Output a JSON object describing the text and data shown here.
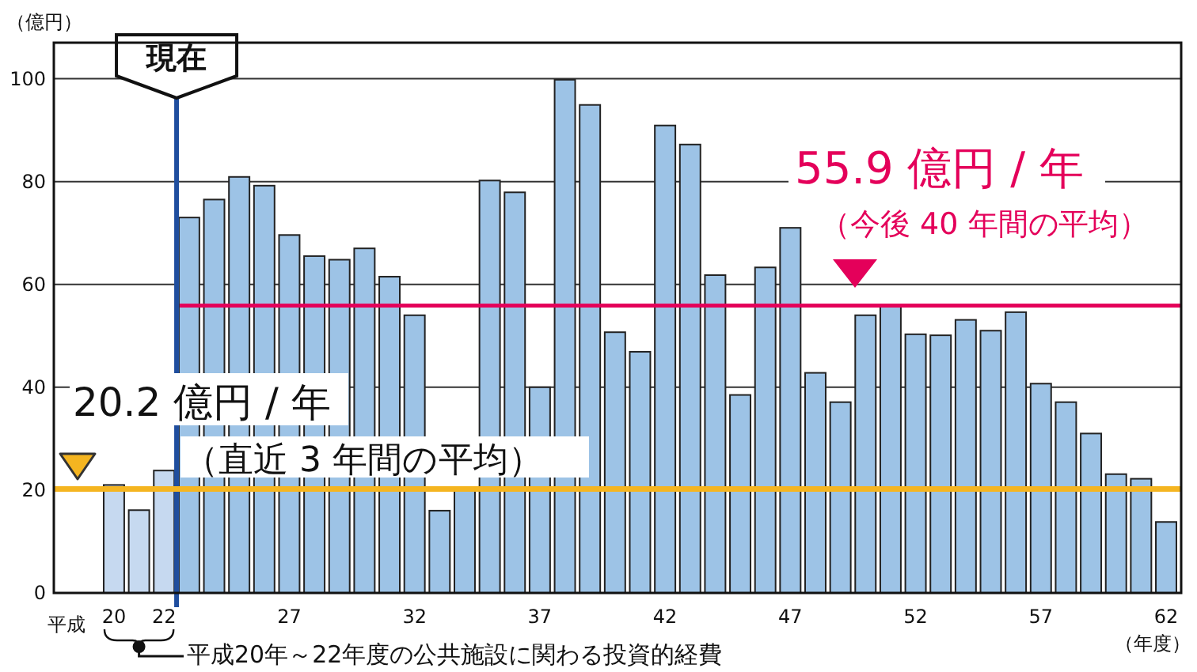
{
  "chart_data": {
    "type": "bar",
    "ylabel": "（億円）",
    "xlabel": "（年度）",
    "x": [
      20,
      21,
      22,
      23,
      24,
      25,
      26,
      27,
      28,
      29,
      30,
      31,
      32,
      33,
      34,
      35,
      36,
      37,
      38,
      39,
      40,
      41,
      42,
      43,
      44,
      45,
      46,
      47,
      48,
      49,
      50,
      51,
      52,
      53,
      54,
      55,
      56,
      57,
      58,
      59,
      60,
      61,
      62
    ],
    "values": [
      21.0,
      16.1,
      23.8,
      73.0,
      76.5,
      80.9,
      79.2,
      69.6,
      65.5,
      64.8,
      67.0,
      61.5,
      54.0,
      16.0,
      20.5,
      80.2,
      77.9,
      40,
      99.8,
      94.9,
      50.7,
      46.9,
      90.9,
      87.2,
      61.8,
      38.5,
      63.3,
      71.0,
      42.8,
      37.1,
      54.0,
      55.9,
      50.3,
      50.1,
      53.1,
      51.0,
      54.6,
      40.7,
      37.1,
      31.0,
      23.1,
      22.2,
      13.8
    ],
    "colors": [
      "#c6d9f0",
      "#c6d9f0",
      "#c6d9f0",
      "#9dc3e6",
      "#9dc3e6",
      "#9dc3e6",
      "#9dc3e6",
      "#9dc3e6",
      "#9dc3e6",
      "#9dc3e6",
      "#9dc3e6",
      "#9dc3e6",
      "#9dc3e6",
      "#9dc3e6",
      "#9dc3e6",
      "#9dc3e6",
      "#9dc3e6",
      "#9dc3e6",
      "#9dc3e6",
      "#9dc3e6",
      "#9dc3e6",
      "#9dc3e6",
      "#9dc3e6",
      "#9dc3e6",
      "#9dc3e6",
      "#9dc3e6",
      "#9dc3e6",
      "#9dc3e6",
      "#9dc3e6",
      "#9dc3e6",
      "#9dc3e6",
      "#9dc3e6",
      "#9dc3e6",
      "#9dc3e6",
      "#9dc3e6",
      "#9dc3e6",
      "#9dc3e6",
      "#9dc3e6",
      "#9dc3e6",
      "#9dc3e6",
      "#9dc3e6",
      "#9dc3e6",
      "#9dc3e6"
    ],
    "xlim": [
      17.6,
      62.6
    ],
    "xticks": [
      20,
      22,
      27,
      32,
      37,
      42,
      47,
      52,
      57,
      62
    ],
    "ylim": [
      0,
      107
    ],
    "yticks": [
      0,
      20,
      40,
      60,
      80,
      100
    ],
    "grid": "y",
    "ref_lines": [
      {
        "axis": "x",
        "value": 22.5,
        "label": "現在",
        "color": "#1f4e9e"
      },
      {
        "axis": "y",
        "value": 20.2,
        "label": "20.2 億円 / 年",
        "color": "#f5b520"
      },
      {
        "axis": "y",
        "value": 55.9,
        "label": "55.9 億円 / 年",
        "color": "#e4005a"
      }
    ],
    "annotations": [
      "（直近 3 年間の平均）",
      "（今後 40 年間の平均）",
      "平成",
      "平成20年～22年度の公共施設に関わる投資的経費"
    ]
  }
}
